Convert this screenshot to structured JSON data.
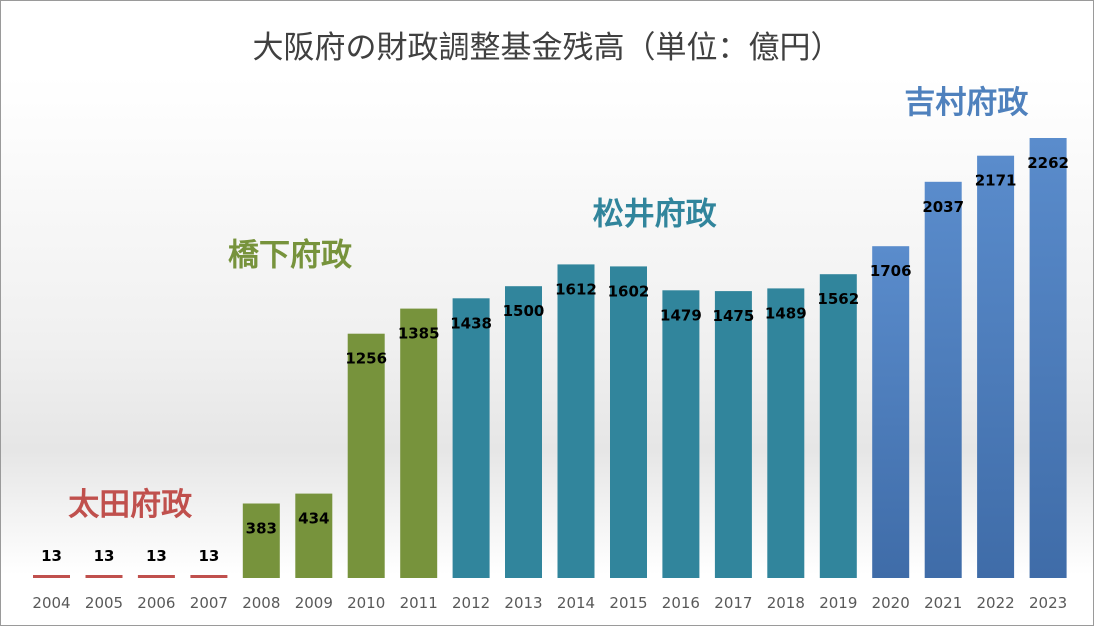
{
  "chart_data": {
    "type": "bar",
    "title": "大阪府の財政調整基金残高（単位：億円）",
    "categories": [
      "2004",
      "2005",
      "2006",
      "2007",
      "2008",
      "2009",
      "2010",
      "2011",
      "2012",
      "2013",
      "2014",
      "2015",
      "2016",
      "2017",
      "2018",
      "2019",
      "2020",
      "2021",
      "2022",
      "2023"
    ],
    "values": [
      13,
      13,
      13,
      13,
      383,
      434,
      1256,
      1385,
      1438,
      1500,
      1612,
      1602,
      1479,
      1475,
      1489,
      1562,
      1706,
      2037,
      2171,
      2262
    ],
    "ylim": [
      0,
      2500
    ],
    "grid": false,
    "colors": {
      "太田府政": "#c0504d",
      "橋下府政": "#77933c",
      "松井府政": "#31859c",
      "吉村府政": "#4f81bd"
    },
    "eras": [
      {
        "name": "太田府政",
        "color": "#c0504d",
        "categories": [
          "2004",
          "2005",
          "2006",
          "2007"
        ]
      },
      {
        "name": "橋下府政",
        "color": "#77933c",
        "categories": [
          "2008",
          "2009",
          "2010",
          "2011"
        ]
      },
      {
        "name": "松井府政",
        "color": "#31859c",
        "categories": [
          "2012",
          "2013",
          "2014",
          "2015",
          "2016",
          "2017",
          "2018",
          "2019"
        ]
      },
      {
        "name": "吉村府政",
        "color": "#4f81bd",
        "categories": [
          "2020",
          "2021",
          "2022",
          "2023"
        ]
      }
    ]
  }
}
